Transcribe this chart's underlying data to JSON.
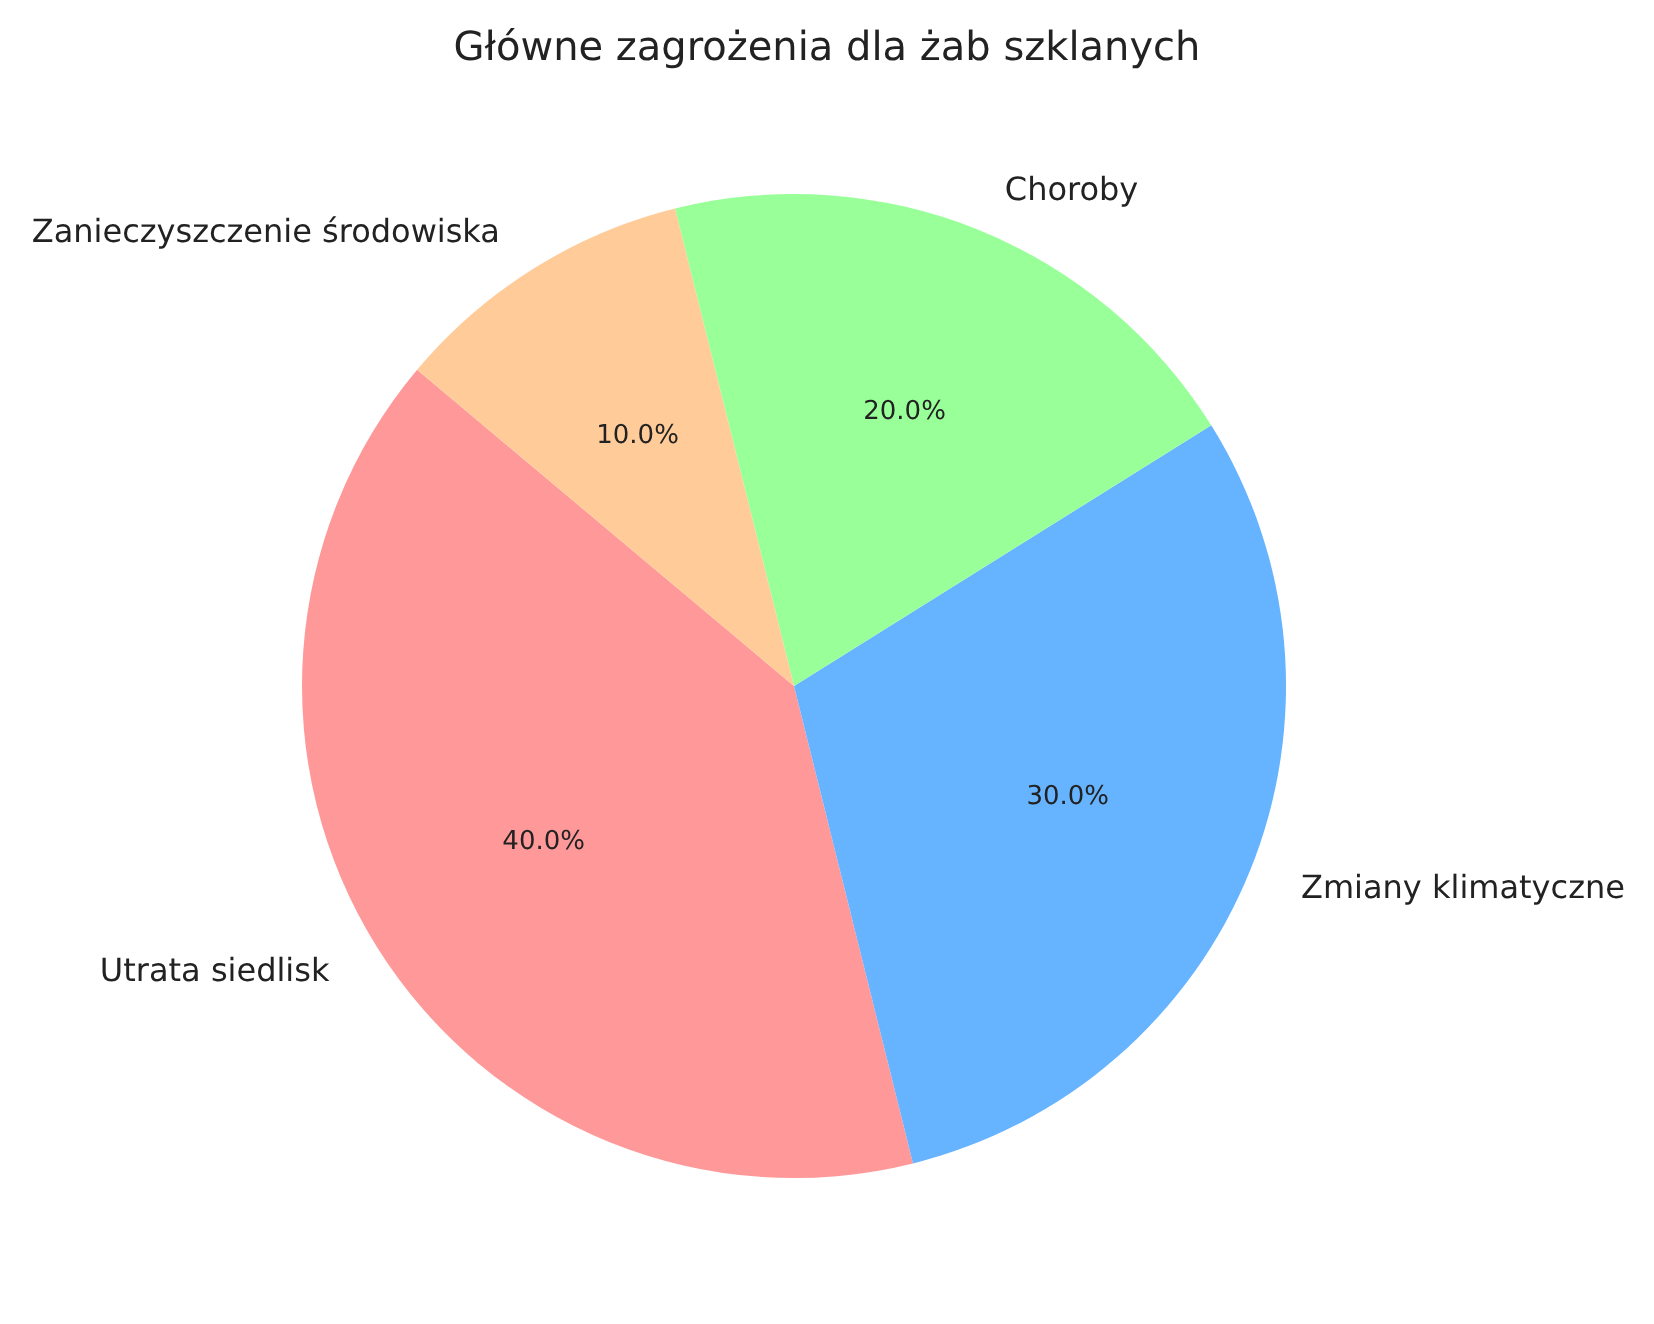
{
  "chart_data": {
    "type": "pie",
    "title": "Główne zagrożenia dla żab szklanych",
    "categories": [
      "Utrata siedlisk",
      "Zmiany klimatyczne",
      "Choroby",
      "Zanieczyszczenie środowiska"
    ],
    "values": [
      40,
      30,
      20,
      10
    ],
    "colors": [
      "#ff9999",
      "#66b3ff",
      "#99ff99",
      "#ffcc99"
    ],
    "value_labels": [
      "40.0%",
      "30.0%",
      "20.0%",
      "10.0%"
    ]
  }
}
